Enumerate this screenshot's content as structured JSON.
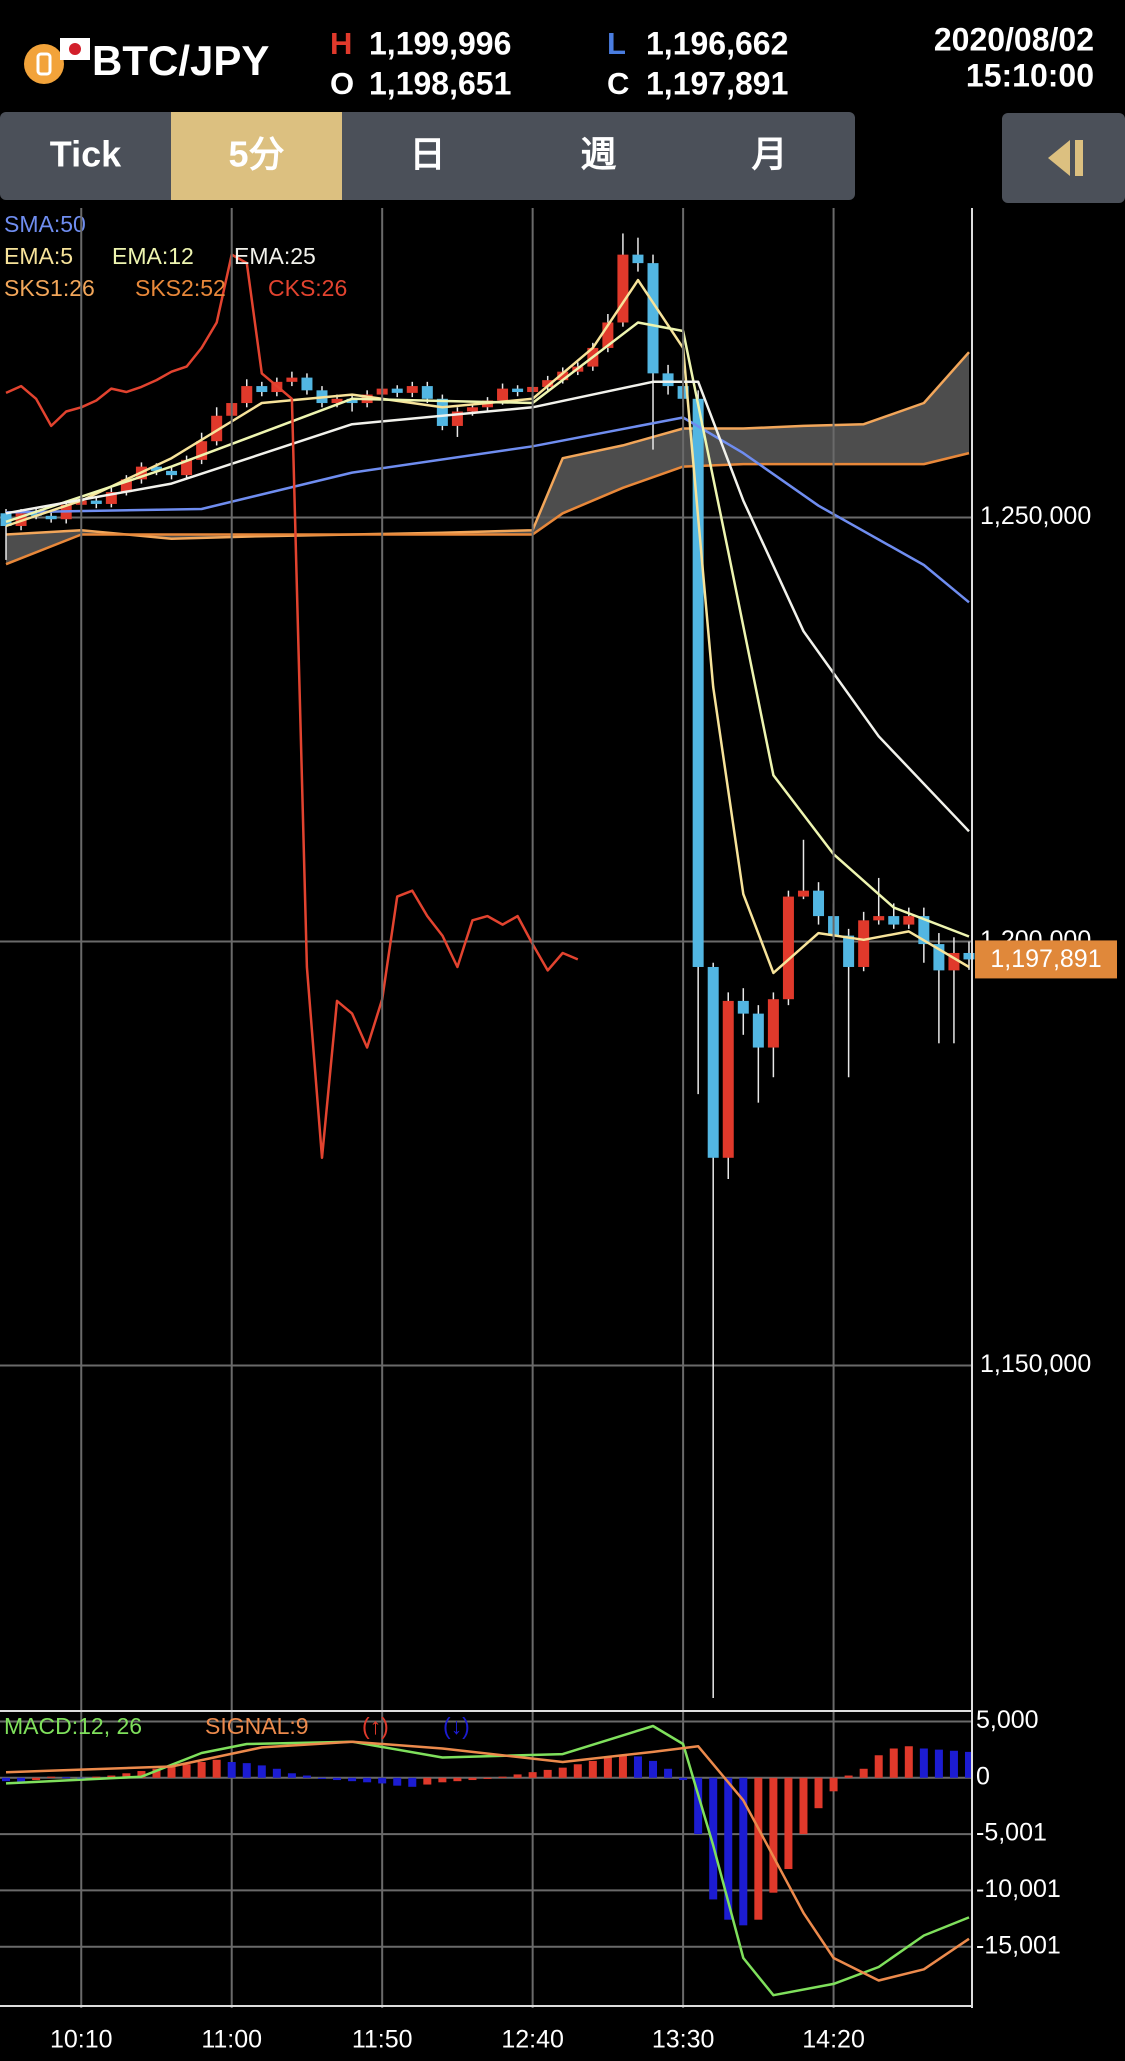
{
  "header": {
    "symbol": "BTC/JPY",
    "high_label": "H",
    "high": "1,199,996",
    "low_label": "L",
    "low": "1,196,662",
    "open_label": "O",
    "open": "1,198,651",
    "close_label": "C",
    "close": "1,197,891",
    "date": "2020/08/02",
    "time": "15:10:00"
  },
  "tabs": [
    "Tick",
    "5分",
    "日",
    "週",
    "月"
  ],
  "active_tab": 1,
  "chart_data": [
    {
      "type": "candlestick",
      "x": [
        585,
        590,
        595,
        600,
        605,
        610,
        615,
        620,
        625,
        630,
        635,
        640,
        645,
        650,
        655,
        660,
        665,
        670,
        675,
        680,
        685,
        690,
        695,
        700,
        705,
        710,
        715,
        720,
        725,
        730,
        735,
        740,
        745,
        750,
        755,
        760,
        765,
        770,
        775,
        780,
        785,
        790,
        795,
        800,
        805,
        810,
        815,
        820,
        825,
        830,
        835,
        840,
        845,
        850,
        855,
        860,
        865,
        870,
        875,
        880,
        885,
        890,
        895,
        900,
        905
      ],
      "open": [
        1250500,
        1249000,
        1250500,
        1250200,
        1249800,
        1251500,
        1252000,
        1251600,
        1253000,
        1254500,
        1256000,
        1255500,
        1255000,
        1256800,
        1259000,
        1262000,
        1263500,
        1265500,
        1264800,
        1266000,
        1266500,
        1265000,
        1263500,
        1264000,
        1263500,
        1264500,
        1265200,
        1264700,
        1265500,
        1264000,
        1260800,
        1262500,
        1263000,
        1263800,
        1265200,
        1264800,
        1265400,
        1266200,
        1267200,
        1267800,
        1270000,
        1273000,
        1281000,
        1280000,
        1267000,
        1265500,
        1264000,
        1197000,
        1174500,
        1193000,
        1191500,
        1187500,
        1193200,
        1205300,
        1206000,
        1203000,
        1200700,
        1197000,
        1202500,
        1203000,
        1202000,
        1203000,
        1199700,
        1196600,
        1198651
      ],
      "high": [
        1251000,
        1251000,
        1251000,
        1250600,
        1252000,
        1252500,
        1252400,
        1253500,
        1255000,
        1256500,
        1256400,
        1256000,
        1257300,
        1260000,
        1263000,
        1264500,
        1266300,
        1266000,
        1266500,
        1267200,
        1267000,
        1265500,
        1264500,
        1264400,
        1265000,
        1265700,
        1265600,
        1266000,
        1266000,
        1264500,
        1263000,
        1263400,
        1264200,
        1265800,
        1265600,
        1265900,
        1266700,
        1267700,
        1268300,
        1270600,
        1274000,
        1283500,
        1283000,
        1281000,
        1268000,
        1266500,
        1265000,
        1197500,
        1194000,
        1194500,
        1192500,
        1194000,
        1206000,
        1212000,
        1207000,
        1204500,
        1201500,
        1203500,
        1207500,
        1204500,
        1204000,
        1204000,
        1201000,
        1200500,
        1199996
      ],
      "low": [
        1245000,
        1248500,
        1249800,
        1249400,
        1249300,
        1251000,
        1251100,
        1251200,
        1252600,
        1254000,
        1255000,
        1254500,
        1254600,
        1256300,
        1258500,
        1261500,
        1263000,
        1264300,
        1264300,
        1265500,
        1264500,
        1263000,
        1263000,
        1262500,
        1263000,
        1264000,
        1264200,
        1264200,
        1263500,
        1260300,
        1259500,
        1262000,
        1262600,
        1263300,
        1264300,
        1264300,
        1265000,
        1265800,
        1266800,
        1267300,
        1269500,
        1272500,
        1279000,
        1258000,
        1264500,
        1263000,
        1182000,
        1110800,
        1172000,
        1189000,
        1181000,
        1184000,
        1192500,
        1205000,
        1202000,
        1195000,
        1184000,
        1196500,
        1202000,
        1201500,
        1201500,
        1197500,
        1188000,
        1188000,
        1196662
      ],
      "close": [
        1249000,
        1250500,
        1250200,
        1249800,
        1251500,
        1252000,
        1251600,
        1253000,
        1254500,
        1256000,
        1255500,
        1255000,
        1256800,
        1259000,
        1262000,
        1263500,
        1265500,
        1264800,
        1266000,
        1266500,
        1265000,
        1263500,
        1264000,
        1263500,
        1264500,
        1265200,
        1264700,
        1265500,
        1264000,
        1260800,
        1262500,
        1263000,
        1263800,
        1265200,
        1264800,
        1265400,
        1266200,
        1267200,
        1267800,
        1270000,
        1273000,
        1281000,
        1280000,
        1267000,
        1265500,
        1264000,
        1197000,
        1174500,
        1193000,
        1191500,
        1187500,
        1193200,
        1205300,
        1206000,
        1203000,
        1200700,
        1197000,
        1202500,
        1203000,
        1202000,
        1203000,
        1199700,
        1196600,
        1198651,
        1197891
      ],
      "up_color": "#e0392b",
      "down_color": "#52b6e2",
      "series": [
        {
          "name": "SMA:50",
          "color": "#6f8df0",
          "x": [
            585,
            650,
            700,
            760,
            810,
            830,
            855,
            890,
            905
          ],
          "values": [
            1250600,
            1251000,
            1255300,
            1258400,
            1261800,
            1257600,
            1251400,
            1244400,
            1240000
          ]
        },
        {
          "name": "EMA:5",
          "color": "#f7e39a",
          "x": [
            585,
            610,
            640,
            670,
            700,
            730,
            760,
            780,
            795,
            810,
            820,
            830,
            840,
            855,
            870,
            885,
            905
          ],
          "values": [
            1249000,
            1252000,
            1257000,
            1263500,
            1264500,
            1263000,
            1264000,
            1270000,
            1278000,
            1270000,
            1230000,
            1205600,
            1196300,
            1201000,
            1200200,
            1201200,
            1197000
          ]
        },
        {
          "name": "EMA:12",
          "color": "#eef5b0",
          "x": [
            585,
            640,
            700,
            760,
            795,
            810,
            825,
            840,
            860,
            880,
            905
          ],
          "values": [
            1249500,
            1256000,
            1264000,
            1263500,
            1273000,
            1272000,
            1246000,
            1219600,
            1210300,
            1204000,
            1200600
          ]
        },
        {
          "name": "EMA:25",
          "color": "#f2f2ec",
          "x": [
            585,
            640,
            700,
            760,
            800,
            815,
            830,
            850,
            875,
            905
          ],
          "values": [
            1250500,
            1254000,
            1261000,
            1263000,
            1266000,
            1266000,
            1252000,
            1236600,
            1224200,
            1213000
          ]
        },
        {
          "name": "CKS:26",
          "color": "#e2432f",
          "x": [
            585,
            590,
            595,
            600,
            605,
            610,
            615,
            620,
            625,
            630,
            635,
            640,
            645,
            650,
            655,
            660,
            665,
            670,
            675,
            680,
            685,
            690,
            695,
            700,
            705,
            710,
            715,
            720,
            725,
            730,
            735,
            740,
            745,
            750,
            755,
            760,
            765,
            770,
            775
          ],
          "values": [
            1264700,
            1265500,
            1264000,
            1260800,
            1262500,
            1263000,
            1263800,
            1265200,
            1264800,
            1265400,
            1266200,
            1267200,
            1267800,
            1270000,
            1273000,
            1281000,
            1280000,
            1267000,
            1265500,
            1264000,
            1197000,
            1174500,
            1193000,
            1191500,
            1187500,
            1193200,
            1205300,
            1206000,
            1203000,
            1200700,
            1197000,
            1202500,
            1203000,
            1202000,
            1203000,
            1199700,
            1196600,
            1198651,
            1197891
          ]
        }
      ],
      "ichimoku": {
        "x": [
          585,
          610,
          640,
          670,
          700,
          730,
          760,
          770,
          790,
          810,
          830,
          850,
          870,
          890,
          905
        ],
        "span1": {
          "name": "SKS1:26",
          "color": "#f2a65a",
          "values": [
            1248000,
            1248500,
            1247500,
            1247800,
            1248000,
            1248200,
            1248500,
            1257000,
            1258500,
            1260500,
            1260500,
            1260800,
            1261000,
            1263500,
            1269500
          ]
        },
        "span2": {
          "name": "SKS2:52",
          "color": "#e8883a",
          "values": [
            1244500,
            1248000,
            1248000,
            1248000,
            1248000,
            1248000,
            1248000,
            1250500,
            1253500,
            1256000,
            1256300,
            1256300,
            1256300,
            1256300,
            1257600
          ]
        },
        "fill": "#5a5a5a"
      },
      "xlim": [
        583,
        906
      ],
      "ylim": [
        1109500,
        1286500
      ],
      "yticks": [
        {
          "value": 1150000,
          "label": "1,150,000"
        },
        {
          "value": 1200000,
          "label": "1,200,000"
        },
        {
          "value": 1250000,
          "label": "1,250,000"
        }
      ],
      "grid": true,
      "last_label": "1,197,891",
      "last_color": "#e0883a"
    },
    {
      "type": "macd",
      "x": [
        585,
        590,
        595,
        600,
        605,
        610,
        615,
        620,
        625,
        630,
        635,
        640,
        645,
        650,
        655,
        660,
        665,
        670,
        675,
        680,
        685,
        690,
        695,
        700,
        705,
        710,
        715,
        720,
        725,
        730,
        735,
        740,
        745,
        750,
        755,
        760,
        765,
        770,
        775,
        780,
        785,
        790,
        795,
        800,
        805,
        810,
        815,
        820,
        825,
        830,
        835,
        840,
        845,
        850,
        855,
        860,
        865,
        870,
        875,
        880,
        885,
        890,
        895,
        900,
        905
      ],
      "histogram": [
        -300,
        -400,
        -200,
        100,
        50,
        -100,
        100,
        200,
        400,
        600,
        800,
        1000,
        1200,
        1400,
        1600,
        1400,
        1300,
        1100,
        800,
        400,
        200,
        -100,
        -200,
        -300,
        -400,
        -500,
        -700,
        -800,
        -600,
        -400,
        -300,
        -200,
        -100,
        100,
        300,
        500,
        700,
        900,
        1200,
        1500,
        1800,
        2000,
        1900,
        1500,
        800,
        -200,
        -5000,
        -10800,
        -12600,
        -13100,
        -12600,
        -10200,
        -8100,
        -5000,
        -2700,
        -1200,
        200,
        800,
        2000,
        2600,
        2800,
        2600,
        2500,
        2400,
        2300
      ],
      "up_color": "#e0392b",
      "down_color": "#1c1cd2",
      "hist_up_label": "(↑)",
      "hist_down_label": "(↓)",
      "series": [
        {
          "name": "MACD:12, 26",
          "color": "#7fe05c",
          "x": [
            585,
            630,
            650,
            665,
            700,
            730,
            770,
            800,
            810,
            820,
            830,
            840,
            860,
            875,
            890,
            905
          ],
          "values": [
            -500,
            100,
            2200,
            3000,
            3200,
            1800,
            2100,
            4600,
            3000,
            -6000,
            -16000,
            -19300,
            -18300,
            -16800,
            -14000,
            -12400
          ]
        },
        {
          "name": "SIGNAL:9",
          "color": "#ec8a4c",
          "x": [
            585,
            640,
            670,
            700,
            730,
            770,
            800,
            815,
            830,
            850,
            860,
            875,
            890,
            905
          ],
          "values": [
            500,
            1000,
            2700,
            3200,
            2600,
            1400,
            2300,
            2800,
            -2000,
            -12000,
            -16000,
            -18000,
            -17000,
            -14300
          ]
        }
      ],
      "xlim": [
        583,
        906
      ],
      "ylim": [
        -20440,
        5930
      ],
      "yticks": [
        {
          "value": 5000,
          "label": "5,000"
        },
        0,
        {
          "value": -5001,
          "label": "-5,001"
        },
        {
          "value": -10001,
          "label": "-10,001"
        },
        {
          "value": -15001,
          "label": "-15,001"
        }
      ],
      "xticks": [
        {
          "value": 610,
          "label": "10:10"
        },
        {
          "value": 660,
          "label": "11:00"
        },
        {
          "value": 710,
          "label": "11:50"
        },
        {
          "value": 760,
          "label": "12:40"
        },
        {
          "value": 810,
          "label": "13:30"
        },
        {
          "value": 860,
          "label": "14:20"
        }
      ],
      "grid": true
    }
  ]
}
